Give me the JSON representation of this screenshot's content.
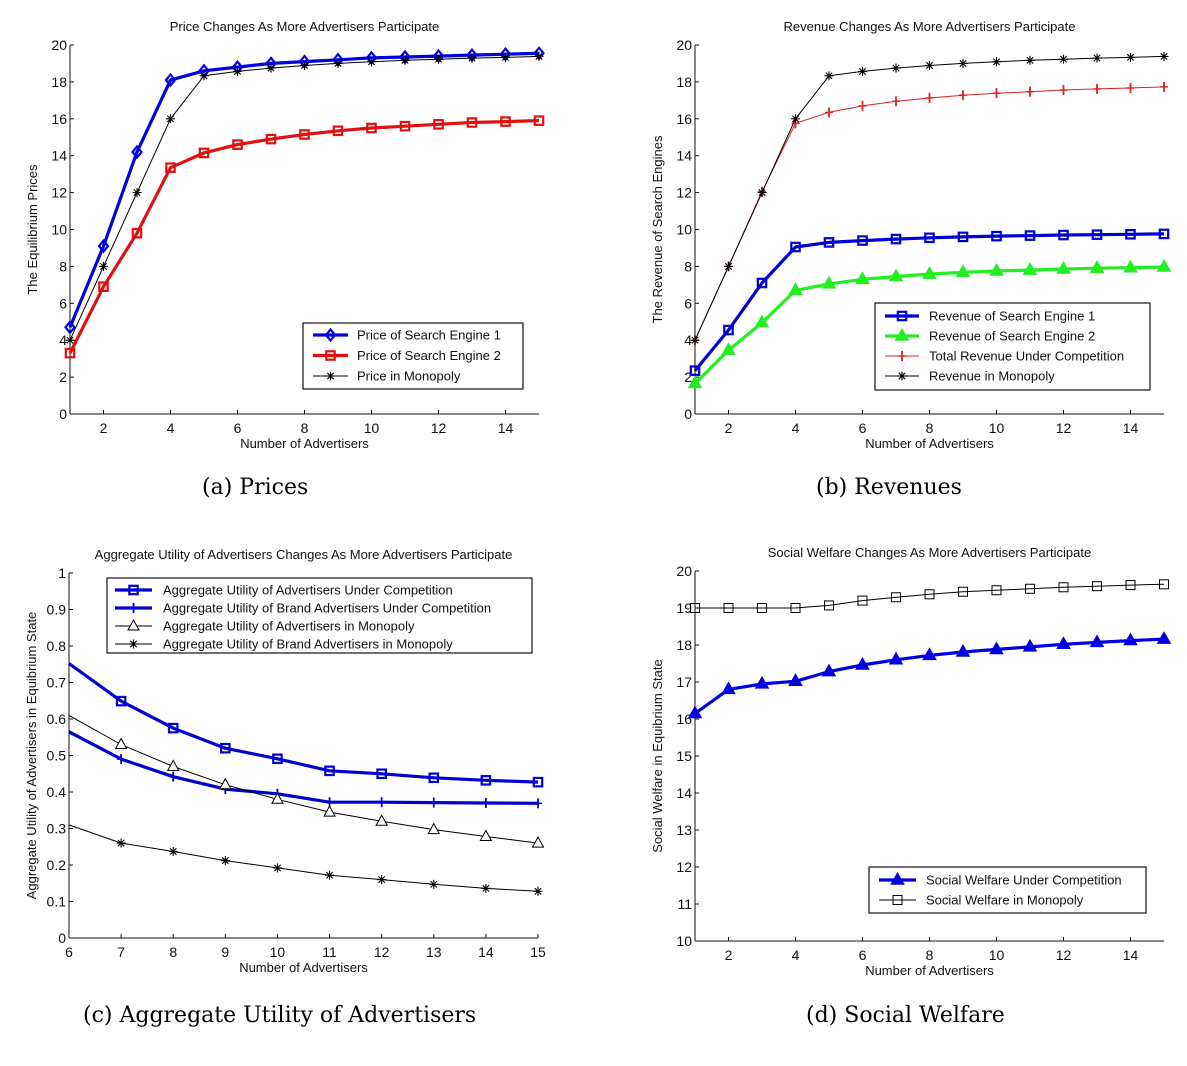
{
  "captions": {
    "a": "(a) Prices",
    "b": "(b) Revenues",
    "c": "(c) Aggregate Utility of Advertisers",
    "d": "(d) Social Welfare"
  },
  "chart_data": [
    {
      "id": "a",
      "type": "line",
      "title": "Price Changes As More Advertisers Participate",
      "xlabel": "Number of Advertisers",
      "ylabel": "The Equilibrium Prices",
      "xlim": [
        1,
        15
      ],
      "ylim": [
        0,
        20
      ],
      "xticks": [
        2,
        4,
        6,
        8,
        10,
        12,
        14
      ],
      "xtick_labels": [
        "2",
        "4",
        "6",
        "8",
        "10",
        "12",
        "14"
      ],
      "yticks": [
        0,
        2,
        4,
        6,
        8,
        10,
        12,
        14,
        16,
        18,
        20
      ],
      "ytick_labels": [
        "0",
        "2",
        "4",
        "6",
        "8",
        "10",
        "12",
        "14",
        "16",
        "18",
        "20"
      ],
      "grid": false,
      "legend_position": "bottom-right",
      "x": [
        1,
        2,
        3,
        4,
        5,
        6,
        7,
        8,
        9,
        10,
        11,
        12,
        13,
        14,
        15
      ],
      "series": [
        {
          "name": "Price of Search Engine 1",
          "color": "#0000e0",
          "marker": "diamond",
          "width": "thick",
          "values": [
            4.7,
            9.1,
            14.2,
            18.1,
            18.6,
            18.8,
            19.0,
            19.1,
            19.2,
            19.3,
            19.35,
            19.4,
            19.45,
            19.5,
            19.55
          ]
        },
        {
          "name": "Price of Search Engine 2",
          "color": "#e01010",
          "marker": "square",
          "width": "thick",
          "values": [
            3.3,
            6.9,
            9.8,
            13.35,
            14.15,
            14.6,
            14.9,
            15.15,
            15.35,
            15.5,
            15.6,
            15.7,
            15.8,
            15.85,
            15.9
          ]
        },
        {
          "name": "Price in Monopoly",
          "color": "#000000",
          "marker": "star",
          "width": "thin",
          "values": [
            4,
            8,
            12,
            16,
            18.33,
            18.57,
            18.75,
            18.89,
            19.0,
            19.09,
            19.17,
            19.23,
            19.29,
            19.33,
            19.38
          ]
        }
      ]
    },
    {
      "id": "b",
      "type": "line",
      "title": "Revenue Changes As More Advertisers Participate",
      "xlabel": "Number of Advertisers",
      "ylabel": "The Revenue of Search Engines",
      "xlim": [
        1,
        15
      ],
      "ylim": [
        0,
        20
      ],
      "xticks": [
        2,
        4,
        6,
        8,
        10,
        12,
        14
      ],
      "xtick_labels": [
        "2",
        "4",
        "6",
        "8",
        "10",
        "12",
        "14"
      ],
      "yticks": [
        0,
        2,
        4,
        6,
        8,
        10,
        12,
        14,
        16,
        18,
        20
      ],
      "ytick_labels": [
        "0",
        "2",
        "4",
        "6",
        "8",
        "10",
        "12",
        "14",
        "16",
        "18",
        "20"
      ],
      "grid": false,
      "legend_position": "bottom-right",
      "x": [
        1,
        2,
        3,
        4,
        5,
        6,
        7,
        8,
        9,
        10,
        11,
        12,
        13,
        14,
        15
      ],
      "series": [
        {
          "name": "Revenue of Search Engine 1",
          "color": "#0000d0",
          "marker": "square",
          "width": "thick",
          "values": [
            2.35,
            4.55,
            7.1,
            9.05,
            9.3,
            9.4,
            9.48,
            9.55,
            9.6,
            9.64,
            9.67,
            9.7,
            9.72,
            9.74,
            9.76
          ]
        },
        {
          "name": "Revenue of Search Engine 2",
          "color": "#22ee22",
          "marker": "triangle-filled",
          "width": "thick",
          "values": [
            1.65,
            3.45,
            4.95,
            6.7,
            7.05,
            7.3,
            7.45,
            7.58,
            7.68,
            7.75,
            7.8,
            7.86,
            7.9,
            7.93,
            7.97
          ]
        },
        {
          "name": "Total Revenue Under Competition",
          "color": "#e02020",
          "marker": "plus",
          "width": "thin",
          "values": [
            4,
            8,
            12.05,
            15.75,
            16.35,
            16.7,
            16.95,
            17.13,
            17.28,
            17.39,
            17.47,
            17.56,
            17.62,
            17.67,
            17.73
          ]
        },
        {
          "name": "Revenue in Monopoly",
          "color": "#000000",
          "marker": "star",
          "width": "thin",
          "values": [
            4,
            8,
            12,
            16,
            18.33,
            18.57,
            18.75,
            18.89,
            19.0,
            19.09,
            19.17,
            19.23,
            19.29,
            19.33,
            19.38
          ]
        }
      ]
    },
    {
      "id": "c",
      "type": "line",
      "title": "Aggregate Utility of Advertisers Changes As More Advertisers Participate",
      "xlabel": "Number of Advertisers",
      "ylabel": "Aggregate Utility of Advertisers in Equibrium State",
      "xlim": [
        6,
        15
      ],
      "ylim": [
        0,
        1
      ],
      "xticks": [
        6,
        7,
        8,
        9,
        10,
        11,
        12,
        13,
        14,
        15
      ],
      "xtick_labels": [
        "6",
        "7",
        "8",
        "9",
        "10",
        "11",
        "12",
        "13",
        "14",
        "15"
      ],
      "yticks": [
        0,
        0.1,
        0.2,
        0.3,
        0.4,
        0.5,
        0.6,
        0.7,
        0.8,
        0.9,
        1
      ],
      "ytick_labels": [
        "0",
        "0.1",
        "0.2",
        "0.3",
        "0.4",
        "0.5",
        "0.6",
        "0.7",
        "0.8",
        "0.9",
        "1"
      ],
      "grid": false,
      "legend_position": "top-right",
      "x": [
        6,
        7,
        8,
        9,
        10,
        11,
        12,
        13,
        14,
        15
      ],
      "series": [
        {
          "name": "Aggregate Utility of Advertisers Under Competition",
          "color": "#0000d0",
          "marker": "square",
          "width": "thick",
          "values": [
            0.752,
            0.649,
            0.575,
            0.52,
            0.491,
            0.458,
            0.45,
            0.439,
            0.432,
            0.427
          ]
        },
        {
          "name": "Aggregate Utility of Brand Advertisers Under Competition",
          "color": "#0000d0",
          "marker": "plus",
          "width": "thick",
          "values": [
            0.565,
            0.49,
            0.442,
            0.408,
            0.395,
            0.372,
            0.372,
            0.371,
            0.37,
            0.369
          ]
        },
        {
          "name": "Aggregate Utility of Advertisers in Monopoly",
          "color": "#000000",
          "marker": "triangle-open",
          "width": "thin",
          "values": [
            0.61,
            0.53,
            0.47,
            0.42,
            0.38,
            0.345,
            0.32,
            0.297,
            0.278,
            0.26
          ]
        },
        {
          "name": "Aggregate Utility of Brand Advertisers in Monopoly",
          "color": "#000000",
          "marker": "star",
          "width": "thin",
          "values": [
            0.31,
            0.26,
            0.237,
            0.212,
            0.192,
            0.172,
            0.16,
            0.147,
            0.136,
            0.128
          ]
        }
      ]
    },
    {
      "id": "d",
      "type": "line",
      "title": "Social Welfare Changes As More Advertisers Participate",
      "xlabel": "Number of Advertisers",
      "ylabel": "Social Welfare in Equibrium State",
      "xlim": [
        1,
        15
      ],
      "ylim": [
        10,
        20
      ],
      "xticks": [
        2,
        4,
        6,
        8,
        10,
        12,
        14
      ],
      "xtick_labels": [
        "2",
        "4",
        "6",
        "8",
        "10",
        "12",
        "14"
      ],
      "yticks": [
        10,
        11,
        12,
        13,
        14,
        15,
        16,
        17,
        18,
        19,
        20
      ],
      "ytick_labels": [
        "10",
        "11",
        "12",
        "13",
        "14",
        "15",
        "16",
        "17",
        "18",
        "19",
        "20"
      ],
      "grid": false,
      "legend_position": "bottom-right",
      "x": [
        1,
        2,
        3,
        4,
        5,
        6,
        7,
        8,
        9,
        10,
        11,
        12,
        13,
        14,
        15
      ],
      "series": [
        {
          "name": "Social Welfare Under Competition",
          "color": "#0000e0",
          "marker": "triangle-filled",
          "width": "thick",
          "values": [
            16.15,
            16.8,
            16.95,
            17.02,
            17.28,
            17.46,
            17.6,
            17.72,
            17.81,
            17.88,
            17.95,
            18.02,
            18.07,
            18.12,
            18.16
          ]
        },
        {
          "name": "Social Welfare in Monopoly",
          "color": "#000000",
          "marker": "square-open",
          "width": "thin",
          "values": [
            19.0,
            19.0,
            19.0,
            19.0,
            19.07,
            19.2,
            19.29,
            19.37,
            19.44,
            19.48,
            19.52,
            19.56,
            19.59,
            19.62,
            19.64
          ]
        }
      ]
    }
  ]
}
